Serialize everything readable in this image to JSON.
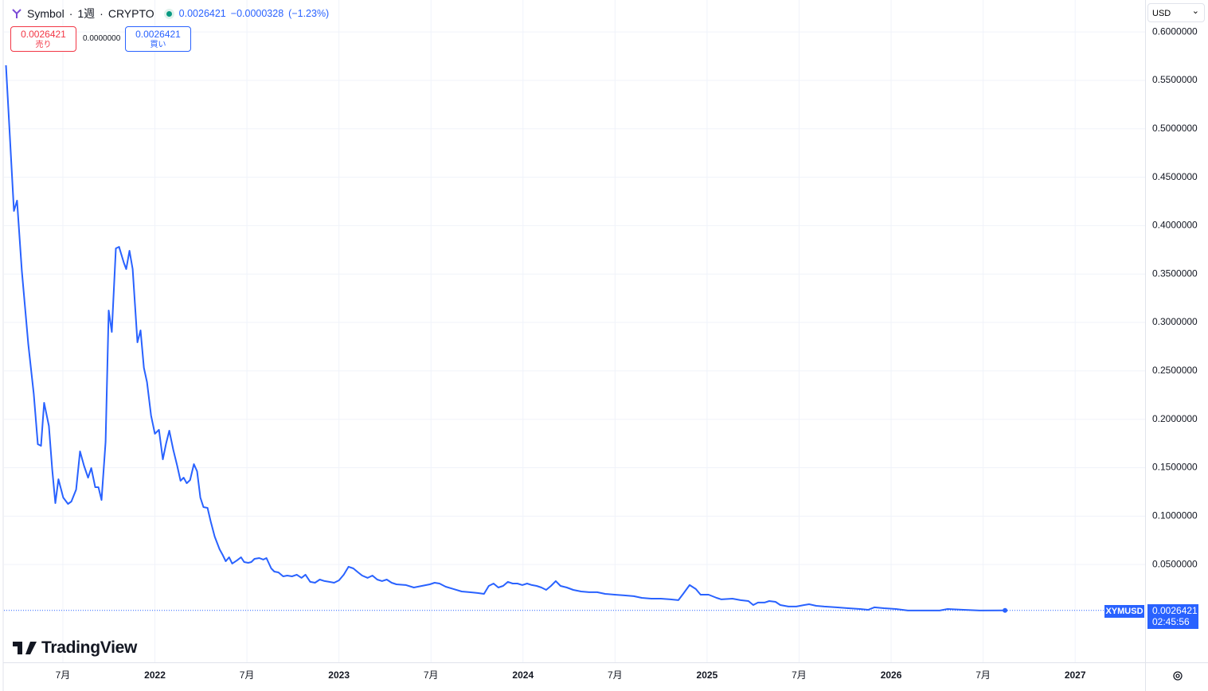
{
  "ui": {
    "symbol": "Symbol",
    "interval": "1週",
    "exchange": "CRYPTO",
    "last": "0.0026421",
    "change": "−0.0000328",
    "change_pct": "(−1.23%)",
    "sell_price": "0.0026421",
    "sell_label": "売り",
    "spread": "0.0000000",
    "buy_price": "0.0026421",
    "buy_label": "買い",
    "currency": "USD",
    "ticker_tag": "XYMUSD",
    "price_tag": "0.0026421",
    "countdown": "02:45:56",
    "brand": "TradingView"
  },
  "chart_data": {
    "type": "line",
    "series": [
      {
        "name": "XYMUSD",
        "color": "#2962ff",
        "x": [
          2021.191,
          2021.234,
          2021.251,
          2021.277,
          2021.312,
          2021.342,
          2021.364,
          2021.381,
          2021.398,
          2021.424,
          2021.442,
          2021.459,
          2021.476,
          2021.502,
          2021.528,
          2021.546,
          2021.572,
          2021.593,
          2021.615,
          2021.637,
          2021.654,
          2021.676,
          2021.693,
          2021.71,
          2021.732,
          2021.749,
          2021.766,
          2021.788,
          2021.805,
          2021.831,
          2021.844,
          2021.862,
          2021.879,
          2021.905,
          2021.922,
          2021.94,
          2021.957,
          2021.979,
          2022.0,
          2022.022,
          2022.043,
          2022.061,
          2022.078,
          2022.1,
          2022.121,
          2022.139,
          2022.156,
          2022.173,
          2022.191,
          2022.212,
          2022.229,
          2022.247,
          2022.264,
          2022.286,
          2022.303,
          2022.325,
          2022.351,
          2022.368,
          2022.385,
          2022.403,
          2022.42,
          2022.446,
          2022.468,
          2022.485,
          2022.507,
          2022.524,
          2022.541,
          2022.567,
          2022.589,
          2022.606,
          2022.632,
          2022.649,
          2022.671,
          2022.697,
          2022.719,
          2022.745,
          2022.771,
          2022.797,
          2022.818,
          2022.844,
          2022.87,
          2022.896,
          2022.922,
          2022.948,
          2022.974,
          2023.0,
          2023.026,
          2023.052,
          2023.078,
          2023.104,
          2023.126,
          2023.156,
          2023.182,
          2023.208,
          2023.234,
          2023.26,
          2023.286,
          2023.312,
          2023.364,
          2023.407,
          2023.45,
          2023.494,
          2023.52,
          2023.546,
          2023.58,
          2023.623,
          2023.667,
          2023.71,
          2023.753,
          2023.788,
          2023.814,
          2023.84,
          2023.866,
          2023.892,
          2023.918,
          2023.944,
          2023.97,
          2023.996,
          2024.022,
          2024.048,
          2024.074,
          2024.1,
          2024.126,
          2024.152,
          2024.178,
          2024.204,
          2024.238,
          2024.273,
          2024.316,
          2024.359,
          2024.403,
          2024.446,
          2024.498,
          2024.55,
          2024.602,
          2024.645,
          2024.697,
          2024.749,
          2024.801,
          2024.844,
          2024.87,
          2024.905,
          2024.939,
          2024.965,
          2025.008,
          2025.052,
          2025.078,
          2025.138,
          2025.182,
          2025.225,
          2025.251,
          2025.277,
          2025.312,
          2025.338,
          2025.372,
          2025.398,
          2025.442,
          2025.485,
          2025.528,
          2025.554,
          2025.593,
          2025.637,
          2025.702,
          2025.766,
          2025.831,
          2025.875,
          2025.909,
          2025.961,
          2026.026,
          2026.091,
          2026.178,
          2026.264,
          2026.307,
          2026.394,
          2026.481,
          2026.619
        ],
        "values": [
          0.5656,
          0.4151,
          0.4258,
          0.3535,
          0.2778,
          0.2261,
          0.1743,
          0.1726,
          0.217,
          0.1932,
          0.148,
          0.1134,
          0.1381,
          0.1192,
          0.1126,
          0.1151,
          0.1274,
          0.1669,
          0.1521,
          0.1397,
          0.1496,
          0.1299,
          0.1299,
          0.1167,
          0.1767,
          0.3124,
          0.2902,
          0.3765,
          0.3781,
          0.3617,
          0.3551,
          0.374,
          0.3551,
          0.2795,
          0.2918,
          0.2532,
          0.2384,
          0.2039,
          0.185,
          0.1891,
          0.1586,
          0.1751,
          0.1882,
          0.1685,
          0.1521,
          0.1365,
          0.1397,
          0.134,
          0.1373,
          0.1537,
          0.1463,
          0.1192,
          0.1093,
          0.1085,
          0.0945,
          0.0789,
          0.0658,
          0.06,
          0.0534,
          0.0575,
          0.051,
          0.0543,
          0.0575,
          0.0526,
          0.0518,
          0.0526,
          0.0559,
          0.0567,
          0.0551,
          0.0567,
          0.046,
          0.0427,
          0.0419,
          0.0378,
          0.0386,
          0.0378,
          0.0395,
          0.0362,
          0.0395,
          0.0321,
          0.0312,
          0.0345,
          0.0329,
          0.0321,
          0.0312,
          0.0337,
          0.0395,
          0.0477,
          0.046,
          0.0419,
          0.0386,
          0.0362,
          0.0386,
          0.0345,
          0.0329,
          0.0345,
          0.0312,
          0.0296,
          0.0288,
          0.0263,
          0.0279,
          0.0296,
          0.0312,
          0.0304,
          0.0271,
          0.0247,
          0.0222,
          0.0214,
          0.0206,
          0.0197,
          0.0279,
          0.0304,
          0.0263,
          0.0279,
          0.0321,
          0.0304,
          0.0304,
          0.0288,
          0.0304,
          0.0288,
          0.0279,
          0.0263,
          0.0238,
          0.0279,
          0.0329,
          0.0279,
          0.0263,
          0.0238,
          0.0222,
          0.0214,
          0.0214,
          0.0197,
          0.0189,
          0.0181,
          0.0173,
          0.0156,
          0.0148,
          0.0148,
          0.014,
          0.0132,
          0.0197,
          0.0288,
          0.0247,
          0.0189,
          0.0189,
          0.0156,
          0.014,
          0.0148,
          0.0132,
          0.0123,
          0.0082,
          0.0107,
          0.0107,
          0.0123,
          0.0115,
          0.0082,
          0.0066,
          0.0066,
          0.0082,
          0.009,
          0.0074,
          0.0066,
          0.0058,
          0.0049,
          0.0041,
          0.0033,
          0.0058,
          0.0049,
          0.0041,
          0.0025,
          0.0025,
          0.0025,
          0.0041,
          0.0033,
          0.0025,
          0.0026421
        ]
      }
    ],
    "xlim": [
      2021.18,
      2027.38
    ],
    "xticks": [
      {
        "value": 2021.5,
        "label": "7月"
      },
      2022,
      {
        "value": 2022.5,
        "label": "7月"
      },
      2023,
      {
        "value": 2023.5,
        "label": "7月"
      },
      2024,
      {
        "value": 2024.5,
        "label": "7月"
      },
      2025,
      {
        "value": 2025.5,
        "label": "7月"
      },
      2026,
      {
        "value": 2026.5,
        "label": "7月"
      },
      2027
    ],
    "ylim": [
      -0.051,
      0.633
    ],
    "yticks": [
      {
        "value": 0.05,
        "label": "0.0500000"
      },
      {
        "value": 0.1,
        "label": "0.1000000"
      },
      {
        "value": 0.15,
        "label": "0.1500000"
      },
      {
        "value": 0.2,
        "label": "0.2000000"
      },
      {
        "value": 0.25,
        "label": "0.2500000"
      },
      {
        "value": 0.3,
        "label": "0.3000000"
      },
      {
        "value": 0.35,
        "label": "0.3500000"
      },
      {
        "value": 0.4,
        "label": "0.4000000"
      },
      {
        "value": 0.45,
        "label": "0.4500000"
      },
      {
        "value": 0.5,
        "label": "0.5000000"
      },
      {
        "value": 0.55,
        "label": "0.5500000"
      },
      {
        "value": 0.6,
        "label": "0.6000000"
      }
    ],
    "grid": true
  }
}
